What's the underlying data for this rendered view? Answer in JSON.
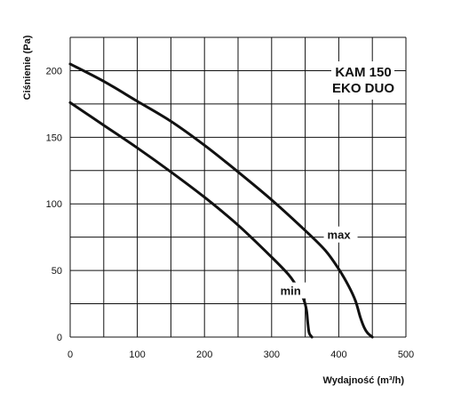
{
  "chart_data": {
    "type": "line",
    "title_lines": [
      "KAM 150",
      "EKO DUO"
    ],
    "xlabel": "Wydajność (m³/h)",
    "ylabel": "Ciśnienie (Pa)",
    "xlim": [
      0,
      500
    ],
    "ylim": [
      0,
      225
    ],
    "x_ticks": [
      0,
      100,
      200,
      300,
      400,
      500
    ],
    "y_ticks": [
      0,
      50,
      100,
      150,
      200
    ],
    "grid": true,
    "grid_x_step": 50,
    "grid_y_step": 25,
    "legend": "inline labels",
    "series": [
      {
        "name": "max",
        "points": [
          [
            0,
            205
          ],
          [
            50,
            192
          ],
          [
            100,
            177
          ],
          [
            150,
            162
          ],
          [
            200,
            144
          ],
          [
            250,
            124
          ],
          [
            300,
            103
          ],
          [
            350,
            80
          ],
          [
            380,
            65
          ],
          [
            400,
            51
          ],
          [
            415,
            38
          ],
          [
            425,
            27
          ],
          [
            432,
            15
          ],
          [
            438,
            7
          ],
          [
            443,
            3
          ],
          [
            450,
            0
          ]
        ]
      },
      {
        "name": "min",
        "points": [
          [
            0,
            176
          ],
          [
            50,
            159
          ],
          [
            100,
            142
          ],
          [
            150,
            124
          ],
          [
            200,
            105
          ],
          [
            250,
            84
          ],
          [
            300,
            60
          ],
          [
            325,
            47
          ],
          [
            335,
            40
          ],
          [
            342,
            34
          ],
          [
            348,
            28
          ],
          [
            352,
            20
          ],
          [
            354,
            10
          ],
          [
            356,
            3
          ],
          [
            360,
            0
          ]
        ]
      }
    ]
  }
}
